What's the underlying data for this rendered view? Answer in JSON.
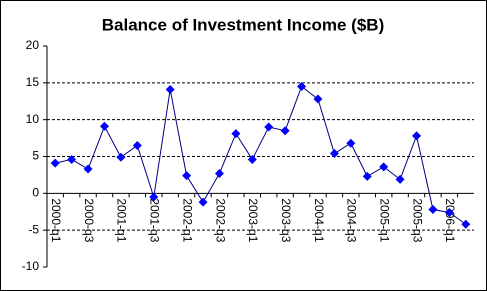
{
  "chart_data": {
    "type": "line",
    "title": "Balance of Investment Income ($B)",
    "categories": [
      "2000-q1",
      null,
      "2000-q3",
      null,
      "2001-q1",
      null,
      "2001-q3",
      null,
      "2002-q1",
      null,
      "2002-q3",
      null,
      "2003-q1",
      null,
      "2003-q3",
      null,
      "2004-q1",
      null,
      "2004-q3",
      null,
      "2005-q1",
      null,
      "2005-q3",
      null,
      "2006-q1",
      null
    ],
    "series": [
      {
        "color": "#0000ff",
        "line_color": "#000080",
        "values": [
          4.1,
          4.6,
          3.3,
          9.1,
          4.9,
          6.5,
          -0.5,
          14.1,
          2.4,
          -1.2,
          2.7,
          8.1,
          4.6,
          9.0,
          8.5,
          14.5,
          12.8,
          5.4,
          6.8,
          2.3,
          3.6,
          1.9,
          7.8,
          -2.2,
          -2.6,
          -4.2
        ]
      }
    ],
    "ylim": [
      -10,
      20
    ],
    "yticks": [
      -10,
      -5,
      0,
      5,
      10,
      15,
      20
    ],
    "grid": true
  }
}
